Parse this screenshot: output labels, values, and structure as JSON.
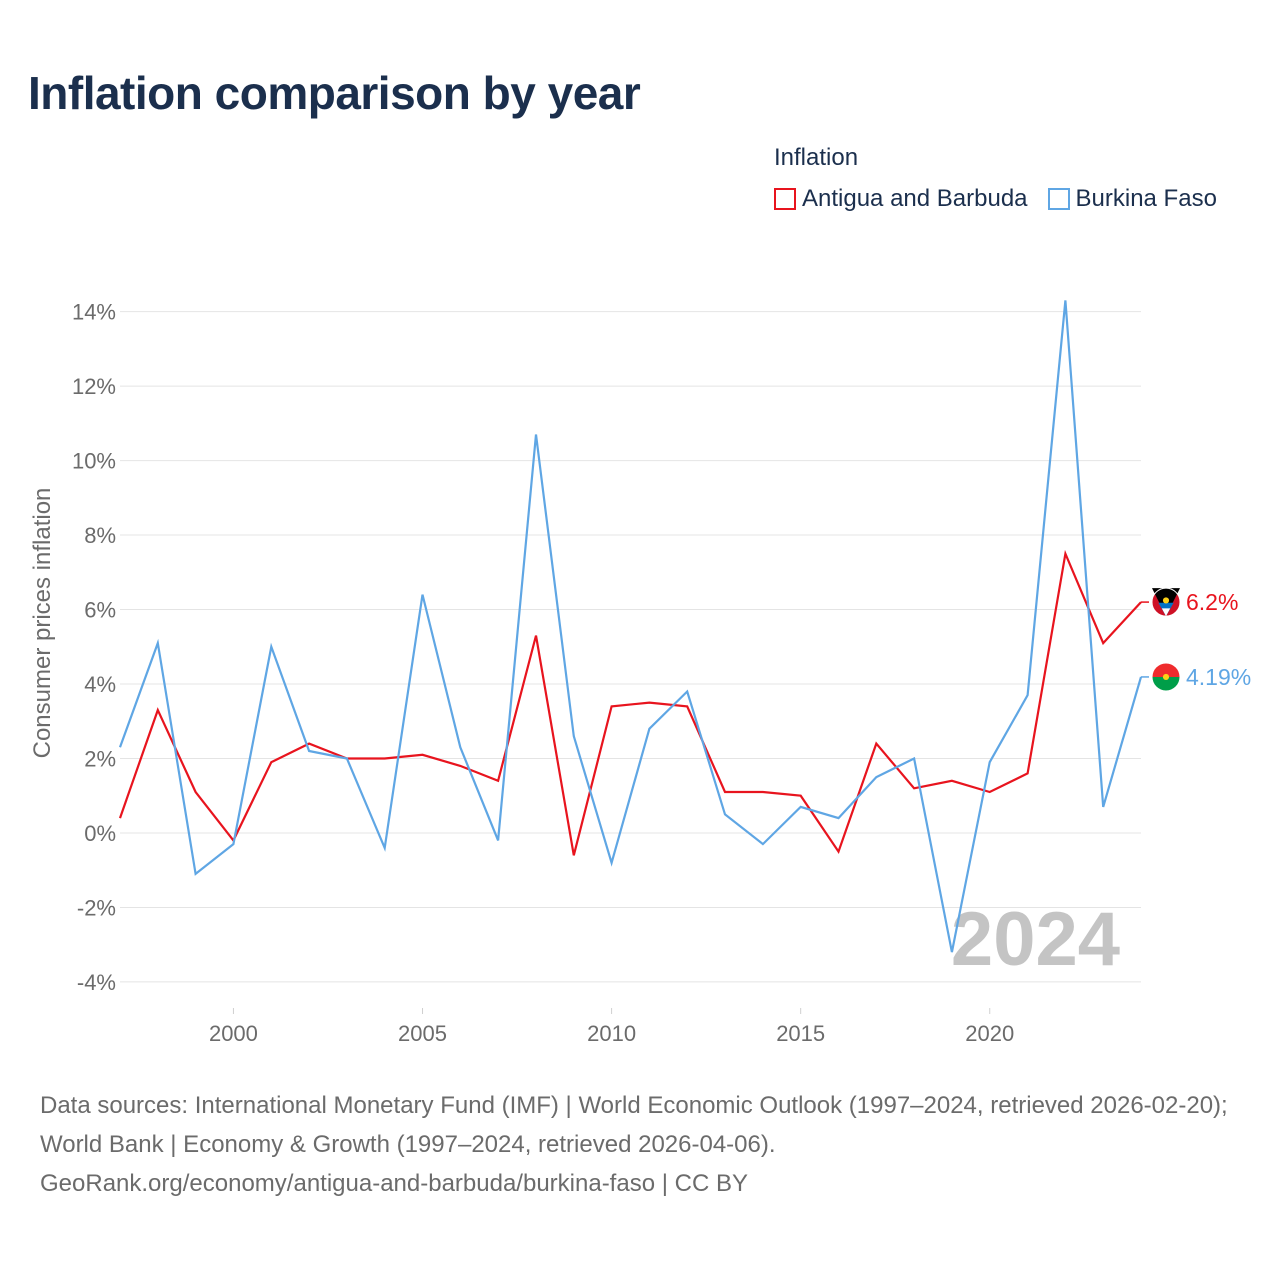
{
  "title": "Inflation comparison by year",
  "legend": {
    "title": "Inflation",
    "items": [
      {
        "label": "Antigua and Barbuda",
        "color": "#e8141e"
      },
      {
        "label": "Burkina Faso",
        "color": "#5fa6e4"
      }
    ]
  },
  "chart_data": {
    "type": "line",
    "title": "Inflation comparison by year",
    "xlabel": "",
    "ylabel": "Consumer prices inflation",
    "xlim": [
      1997,
      2024
    ],
    "ylim": [
      -4.7,
      14.5
    ],
    "x_ticks": [
      2000,
      2005,
      2010,
      2015,
      2020
    ],
    "y_ticks": [
      -4,
      -2,
      0,
      2,
      4,
      6,
      8,
      10,
      12,
      14
    ],
    "y_tick_labels": [
      "-4%",
      "-2%",
      "0%",
      "2%",
      "4%",
      "6%",
      "8%",
      "10%",
      "12%",
      "14%"
    ],
    "grid": true,
    "watermark_year": "2024",
    "x": [
      1997,
      1998,
      1999,
      2000,
      2001,
      2002,
      2003,
      2004,
      2005,
      2006,
      2007,
      2008,
      2009,
      2010,
      2011,
      2012,
      2013,
      2014,
      2015,
      2016,
      2017,
      2018,
      2019,
      2020,
      2021,
      2022,
      2023,
      2024
    ],
    "series": [
      {
        "name": "Antigua and Barbuda",
        "color": "#e8141e",
        "end_label": "6.2%",
        "flag": "antigua-and-barbuda",
        "values": [
          0.4,
          3.3,
          1.1,
          -0.2,
          1.9,
          2.4,
          2.0,
          2.0,
          2.1,
          1.8,
          1.4,
          5.3,
          -0.6,
          3.4,
          3.5,
          3.4,
          1.1,
          1.1,
          1.0,
          -0.5,
          2.4,
          1.2,
          1.4,
          1.1,
          1.6,
          7.5,
          5.1,
          6.2
        ]
      },
      {
        "name": "Burkina Faso",
        "color": "#5fa6e4",
        "end_label": "4.19%",
        "flag": "burkina-faso",
        "values": [
          2.3,
          5.1,
          -1.1,
          -0.3,
          5.0,
          2.2,
          2.0,
          -0.4,
          6.4,
          2.3,
          -0.2,
          10.7,
          2.6,
          -0.8,
          2.8,
          3.8,
          0.5,
          -0.3,
          0.7,
          0.4,
          1.5,
          2.0,
          -3.2,
          1.9,
          3.7,
          14.3,
          0.7,
          4.19
        ]
      }
    ]
  },
  "footer": {
    "sources": "Data sources: International Monetary Fund (IMF) | World Economic Outlook (1997–2024, retrieved 2026-02-20); World Bank | Economy & Growth (1997–2024, retrieved 2026-04-06).",
    "credit": "GeoRank.org/economy/antigua-and-barbuda/burkina-faso | CC BY"
  }
}
